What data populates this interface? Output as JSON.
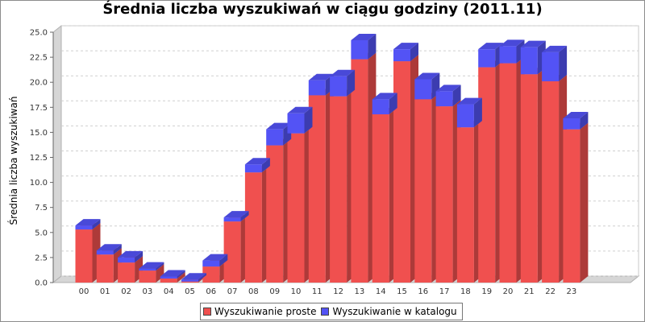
{
  "chart_data": {
    "type": "bar",
    "stacked": true,
    "render_3d": true,
    "title": "Średnia liczba wyszukiwań w ciągu godziny (2011.11)",
    "xlabel": "",
    "ylabel": "Średnia liczba wyszukiwań",
    "ylim": [
      0,
      25
    ],
    "yticks": [
      "0.0",
      "2.5",
      "5.0",
      "7.5",
      "10.0",
      "12.5",
      "15.0",
      "17.5",
      "20.0",
      "22.5",
      "25.0"
    ],
    "grid": true,
    "legend_position": "bottom",
    "categories": [
      "00",
      "01",
      "02",
      "03",
      "04",
      "05",
      "06",
      "07",
      "08",
      "09",
      "10",
      "11",
      "12",
      "13",
      "14",
      "15",
      "16",
      "17",
      "18",
      "19",
      "20",
      "21",
      "22",
      "23"
    ],
    "series": [
      {
        "name": "Wyszukiwanie proste",
        "color": "#f0504f",
        "values": [
          5.3,
          2.8,
          2.0,
          1.2,
          0.4,
          0.1,
          1.6,
          6.1,
          11.0,
          13.7,
          14.9,
          18.7,
          18.6,
          22.3,
          16.8,
          22.1,
          18.3,
          17.6,
          15.5,
          21.5,
          21.9,
          20.8,
          20.1,
          15.3
        ]
      },
      {
        "name": "Wyszukiwanie w katalogu",
        "color": "#5353f5",
        "values": [
          0.4,
          0.4,
          0.5,
          0.2,
          0.2,
          0.2,
          0.6,
          0.4,
          0.8,
          1.6,
          2.0,
          1.5,
          2.0,
          1.9,
          1.5,
          1.2,
          2.0,
          1.5,
          2.3,
          1.8,
          1.7,
          2.7,
          2.9,
          1.1
        ]
      }
    ]
  }
}
